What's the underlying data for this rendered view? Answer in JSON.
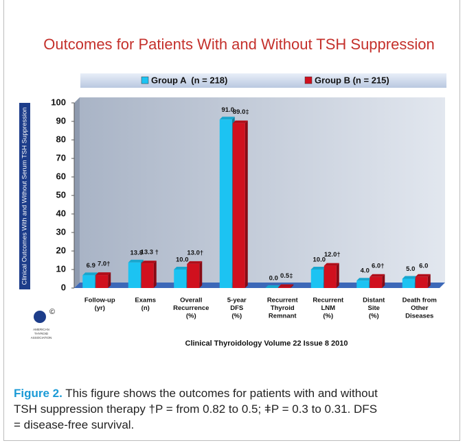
{
  "chart_data": {
    "type": "bar",
    "title": "Outcomes for Patients With and Without TSH Suppression",
    "y_label": "Clinical Outcomes With and Without Serum TSH Suppression",
    "categories": [
      [
        "Follow-up",
        "(yr)"
      ],
      [
        "Exams",
        "(n)"
      ],
      [
        "Overall",
        "Recurrence",
        "(%)"
      ],
      [
        "5-year",
        "DFS",
        "(%)"
      ],
      [
        "Recurrent",
        "Thyroid",
        "Remnant"
      ],
      [
        "Recurrent",
        "LNM",
        "(%)"
      ],
      [
        "Distant",
        "Site",
        "(%)"
      ],
      [
        "Death from",
        "Other",
        "Diseases"
      ]
    ],
    "series": [
      {
        "name": "Group A  (n = 218)",
        "color": "#1cc3f2",
        "values": [
          6.9,
          13.8,
          10.0,
          91.0,
          0.0,
          10.0,
          4.0,
          5.0
        ],
        "value_labels": [
          "6.9",
          "13.8",
          "10.0",
          "91.0",
          "0.0",
          "10.0",
          "4.0",
          "5.0"
        ]
      },
      {
        "name": "Group B (n = 215)",
        "color": "#d0101e",
        "values": [
          7.0,
          13.3,
          13.0,
          89.0,
          0.5,
          12.0,
          6.0,
          6.0
        ],
        "value_labels": [
          "7.0†",
          "13.3 †",
          "13.0†",
          "89.0‡",
          "0.5‡",
          "12.0†",
          "6.0†",
          "6.0"
        ]
      }
    ],
    "ylim": [
      0,
      100
    ],
    "yticks": [
      0,
      10,
      20,
      30,
      40,
      50,
      60,
      70,
      80,
      90,
      100
    ],
    "source": "Clinical Thyroidology Volume 22 Issue 8 2010",
    "logo": {
      "mark": "©",
      "text": [
        "AMERICAN",
        "THYROID",
        "ASSOCIATION"
      ]
    }
  },
  "caption": {
    "label": "Figure 2.",
    "text": [
      "This figure shows the outcomes for patients with and without",
      "TSH suppression therapy †P = from 0.82 to 0.5; ǂP = 0.3 to 0.31. DFS",
      "= disease-free survival."
    ]
  }
}
